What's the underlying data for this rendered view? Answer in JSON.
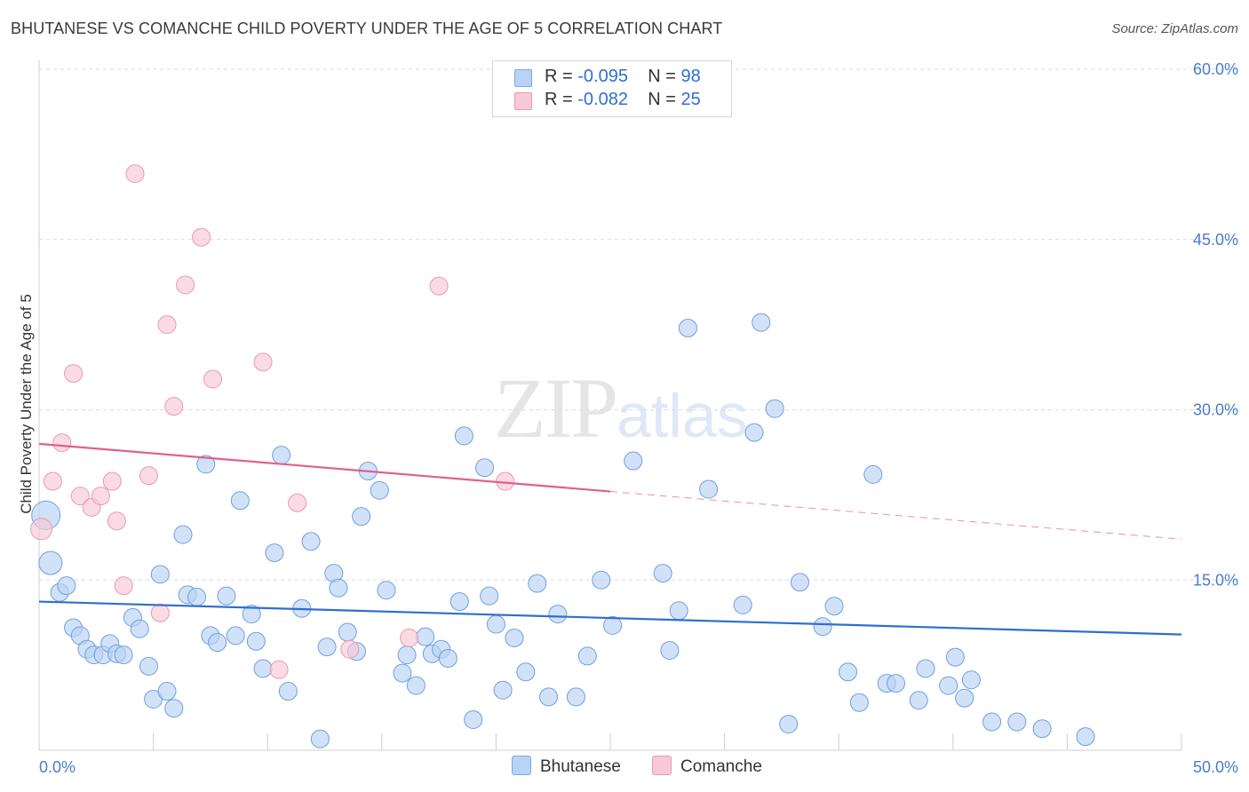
{
  "title": "BHUTANESE VS COMANCHE CHILD POVERTY UNDER THE AGE OF 5 CORRELATION CHART",
  "source": "Source: ZipAtlas.com",
  "watermark": {
    "zip": "ZIP",
    "atlas": "atlas"
  },
  "legend": {
    "rows": [
      {
        "r_label": "R =",
        "r_value": "-0.095",
        "n_label": "N =",
        "n_value": "98",
        "color": "#b8d3f5"
      },
      {
        "r_label": "R =",
        "r_value": "-0.082",
        "n_label": "N =",
        "n_value": "25",
        "color": "#f8c8d6"
      }
    ]
  },
  "bottom_legend": [
    {
      "label": "Bhutanese",
      "color": "#b8d3f5",
      "border": "#7aa8e0"
    },
    {
      "label": "Comanche",
      "color": "#f8c8d6",
      "border": "#e79ab2"
    }
  ],
  "chart_data": {
    "type": "scatter",
    "title": "BHUTANESE VS COMANCHE CHILD POVERTY UNDER THE AGE OF 5 CORRELATION CHART",
    "xlabel": "",
    "ylabel": "Child Poverty Under the Age of 5",
    "xlim": [
      0,
      50
    ],
    "ylim": [
      0,
      60
    ],
    "x_tick_labels": [
      {
        "value": 0,
        "label": "0.0%"
      },
      {
        "value": 50,
        "label": "50.0%"
      }
    ],
    "y_tick_labels": [
      {
        "value": 15,
        "label": "15.0%"
      },
      {
        "value": 30,
        "label": "30.0%"
      },
      {
        "value": 45,
        "label": "45.0%"
      },
      {
        "value": 60,
        "label": "60.0%"
      }
    ],
    "grid": true,
    "legend_position": "top-center",
    "series": [
      {
        "name": "Bhutanese",
        "color": "#b8d3f5",
        "stroke": "#6f9fdc",
        "trend": {
          "x": [
            0,
            50
          ],
          "y": [
            13.1,
            10.2
          ],
          "color": "#2f6fd0",
          "dashed_from": null
        },
        "points": [
          [
            0.3,
            20.7,
            16
          ],
          [
            0.5,
            16.5,
            13
          ],
          [
            0.9,
            13.9,
            10
          ],
          [
            1.2,
            14.5,
            10
          ],
          [
            1.5,
            10.8,
            10
          ],
          [
            1.8,
            10.1,
            10
          ],
          [
            2.1,
            8.9,
            10
          ],
          [
            2.4,
            8.4,
            10
          ],
          [
            2.8,
            8.4,
            10
          ],
          [
            3.1,
            9.4,
            10
          ],
          [
            3.4,
            8.5,
            10
          ],
          [
            3.7,
            8.4,
            10
          ],
          [
            4.1,
            11.7,
            10
          ],
          [
            4.4,
            10.7,
            10
          ],
          [
            4.8,
            7.4,
            10
          ],
          [
            5.0,
            4.5,
            10
          ],
          [
            5.3,
            15.5,
            10
          ],
          [
            5.6,
            5.2,
            10
          ],
          [
            5.9,
            3.7,
            10
          ],
          [
            6.3,
            19.0,
            10
          ],
          [
            6.5,
            13.7,
            10
          ],
          [
            6.9,
            13.5,
            10
          ],
          [
            7.3,
            25.2,
            10
          ],
          [
            7.5,
            10.1,
            10
          ],
          [
            7.8,
            9.5,
            10
          ],
          [
            8.2,
            13.6,
            10
          ],
          [
            8.6,
            10.1,
            10
          ],
          [
            8.8,
            22.0,
            10
          ],
          [
            9.3,
            12.0,
            10
          ],
          [
            9.5,
            9.6,
            10
          ],
          [
            9.8,
            7.2,
            10
          ],
          [
            10.3,
            17.4,
            10
          ],
          [
            10.6,
            26.0,
            10
          ],
          [
            10.9,
            5.2,
            10
          ],
          [
            11.5,
            12.5,
            10
          ],
          [
            11.9,
            18.4,
            10
          ],
          [
            12.3,
            1.0,
            10
          ],
          [
            12.6,
            9.1,
            10
          ],
          [
            12.9,
            15.6,
            10
          ],
          [
            13.1,
            14.3,
            10
          ],
          [
            13.5,
            10.4,
            10
          ],
          [
            13.9,
            8.7,
            10
          ],
          [
            14.1,
            20.6,
            10
          ],
          [
            14.4,
            24.6,
            10
          ],
          [
            14.9,
            22.9,
            10
          ],
          [
            15.2,
            14.1,
            10
          ],
          [
            15.9,
            6.8,
            10
          ],
          [
            16.1,
            8.4,
            10
          ],
          [
            16.5,
            5.7,
            10
          ],
          [
            16.9,
            10.0,
            10
          ],
          [
            17.2,
            8.5,
            10
          ],
          [
            17.6,
            8.9,
            10
          ],
          [
            17.9,
            8.1,
            10
          ],
          [
            18.4,
            13.1,
            10
          ],
          [
            18.6,
            27.7,
            10
          ],
          [
            19.0,
            2.7,
            10
          ],
          [
            19.5,
            24.9,
            10
          ],
          [
            19.7,
            13.6,
            10
          ],
          [
            20.0,
            11.1,
            10
          ],
          [
            20.3,
            5.3,
            10
          ],
          [
            20.8,
            9.9,
            10
          ],
          [
            21.3,
            6.9,
            10
          ],
          [
            21.8,
            14.7,
            10
          ],
          [
            22.3,
            4.7,
            10
          ],
          [
            22.7,
            12.0,
            10
          ],
          [
            23.5,
            4.7,
            10
          ],
          [
            24.0,
            8.3,
            10
          ],
          [
            24.6,
            15.0,
            10
          ],
          [
            25.1,
            11.0,
            10
          ],
          [
            26.0,
            25.5,
            10
          ],
          [
            27.3,
            15.6,
            10
          ],
          [
            27.6,
            8.8,
            10
          ],
          [
            28.0,
            12.3,
            10
          ],
          [
            28.4,
            37.2,
            10
          ],
          [
            29.3,
            23.0,
            10
          ],
          [
            30.8,
            12.8,
            10
          ],
          [
            31.3,
            28.0,
            10
          ],
          [
            31.6,
            37.7,
            10
          ],
          [
            32.2,
            30.1,
            10
          ],
          [
            32.8,
            2.3,
            10
          ],
          [
            33.3,
            14.8,
            10
          ],
          [
            34.3,
            10.9,
            10
          ],
          [
            34.8,
            12.7,
            10
          ],
          [
            35.4,
            6.9,
            10
          ],
          [
            35.9,
            4.2,
            10
          ],
          [
            36.5,
            24.3,
            10
          ],
          [
            37.1,
            5.9,
            10
          ],
          [
            37.5,
            5.9,
            10
          ],
          [
            38.5,
            4.4,
            10
          ],
          [
            38.8,
            7.2,
            10
          ],
          [
            39.8,
            5.7,
            10
          ],
          [
            40.1,
            8.2,
            10
          ],
          [
            40.5,
            4.6,
            10
          ],
          [
            40.8,
            6.2,
            10
          ],
          [
            41.7,
            2.5,
            10
          ],
          [
            42.8,
            2.5,
            10
          ],
          [
            43.9,
            1.9,
            10
          ],
          [
            45.8,
            1.2,
            10
          ]
        ]
      },
      {
        "name": "Comanche",
        "color": "#f8c8d6",
        "stroke": "#e79ab2",
        "trend": {
          "x": [
            0,
            25,
            50
          ],
          "y": [
            27.0,
            22.8,
            18.6
          ],
          "color": "#e0608a",
          "dashed_from": 25
        },
        "points": [
          [
            0.1,
            19.5,
            12
          ],
          [
            0.6,
            23.7,
            10
          ],
          [
            1.0,
            27.1,
            10
          ],
          [
            1.5,
            33.2,
            10
          ],
          [
            1.8,
            22.4,
            10
          ],
          [
            2.3,
            21.4,
            10
          ],
          [
            2.7,
            22.4,
            10
          ],
          [
            3.2,
            23.7,
            10
          ],
          [
            3.4,
            20.2,
            10
          ],
          [
            3.7,
            14.5,
            10
          ],
          [
            4.2,
            50.8,
            10
          ],
          [
            4.8,
            24.2,
            10
          ],
          [
            5.3,
            12.1,
            10
          ],
          [
            5.6,
            37.5,
            10
          ],
          [
            5.9,
            30.3,
            10
          ],
          [
            6.4,
            41.0,
            10
          ],
          [
            7.1,
            45.2,
            10
          ],
          [
            7.6,
            32.7,
            10
          ],
          [
            9.8,
            34.2,
            10
          ],
          [
            10.5,
            7.1,
            10
          ],
          [
            11.3,
            21.8,
            10
          ],
          [
            13.6,
            8.9,
            10
          ],
          [
            16.2,
            9.9,
            10
          ],
          [
            17.5,
            40.9,
            10
          ],
          [
            20.4,
            23.7,
            10
          ]
        ]
      }
    ]
  }
}
